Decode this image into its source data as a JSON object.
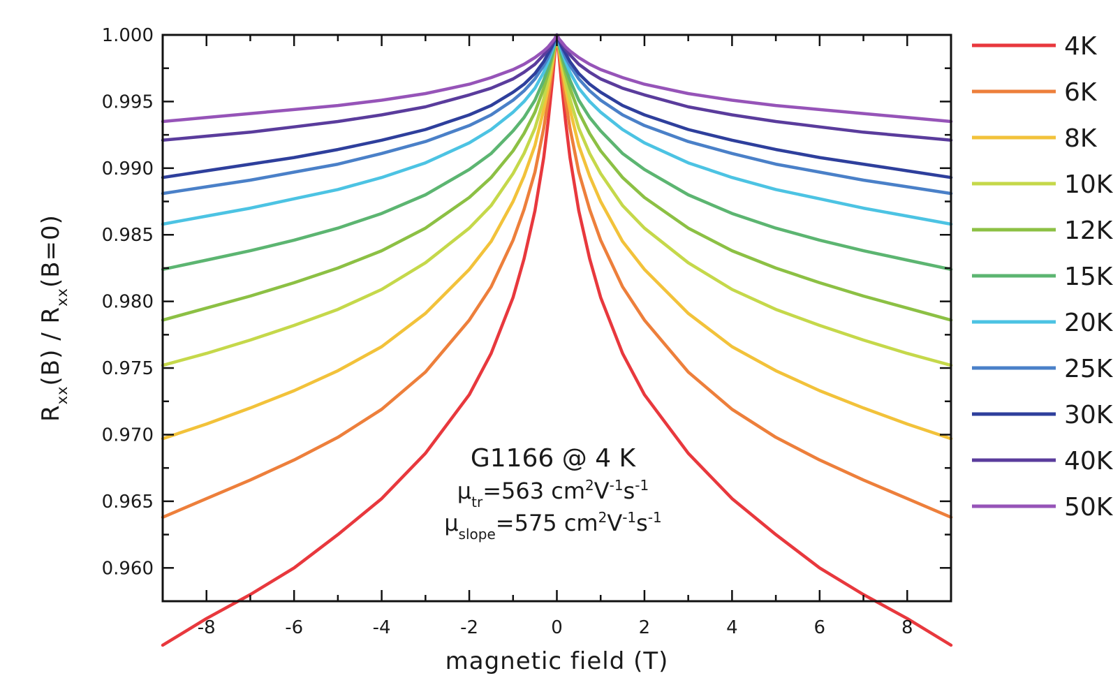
{
  "chart_data": {
    "type": "line",
    "xlabel": "magnetic field (T)",
    "ylabel": {
      "parts": [
        {
          "t": "R"
        },
        {
          "t": "xx",
          "sub": true
        },
        {
          "t": "(B) / R"
        },
        {
          "t": "xx",
          "sub": true
        },
        {
          "t": "(B=0)"
        }
      ]
    },
    "xlim": [
      -9,
      9
    ],
    "ylim": [
      0.9575,
      1.0
    ],
    "x_ticks": [
      -8,
      -6,
      -4,
      -2,
      0,
      2,
      4,
      6,
      8
    ],
    "x_tick_labels": [
      "-8",
      "-6",
      "-4",
      "-2",
      "0",
      "2",
      "4",
      "6",
      "8"
    ],
    "y_ticks": [
      0.96,
      0.965,
      0.97,
      0.975,
      0.98,
      0.985,
      0.99,
      0.995,
      1.0
    ],
    "y_tick_labels": [
      "0.960",
      "0.965",
      "0.970",
      "0.975",
      "0.980",
      "0.985",
      "0.990",
      "0.995",
      "1.000"
    ],
    "grid": false,
    "legend_position": "right, outside plot",
    "annotation": {
      "line1": "G1166 @ 4 K",
      "line2": [
        {
          "t": "μ"
        },
        {
          "t": "tr",
          "sub": true
        },
        {
          "t": "=563 cm"
        },
        {
          "t": "2",
          "sup": true
        },
        {
          "t": "V"
        },
        {
          "t": "-1",
          "sup": true
        },
        {
          "t": "s"
        },
        {
          "t": "-1",
          "sup": true
        }
      ],
      "line3": [
        {
          "t": "μ"
        },
        {
          "t": "slope",
          "sub": true
        },
        {
          "t": "=575 cm"
        },
        {
          "t": "2",
          "sup": true
        },
        {
          "t": "V"
        },
        {
          "t": "-1",
          "sup": true
        },
        {
          "t": "s"
        },
        {
          "t": "-1",
          "sup": true
        }
      ]
    },
    "x": [
      0,
      0.05,
      0.1,
      0.2,
      0.3,
      0.5,
      0.75,
      1.0,
      1.5,
      2.0,
      3.0,
      4.0,
      5.0,
      6.0,
      7.0,
      8.0,
      9.0
    ],
    "series": [
      {
        "name": "4K",
        "color": "#e8383d",
        "values": [
          1.0,
          0.9985,
          0.9966,
          0.9935,
          0.9908,
          0.9868,
          0.9832,
          0.9803,
          0.9761,
          0.973,
          0.9686,
          0.9652,
          0.9625,
          0.96,
          0.958,
          0.9562,
          0.9542
        ]
      },
      {
        "name": "6K",
        "color": "#ed7f3b",
        "values": [
          1.0,
          0.9988,
          0.9975,
          0.9951,
          0.993,
          0.9897,
          0.9869,
          0.9846,
          0.9811,
          0.9786,
          0.9747,
          0.9719,
          0.9698,
          0.9681,
          0.9666,
          0.9652,
          0.9638
        ]
      },
      {
        "name": "8K",
        "color": "#f2c23a",
        "values": [
          1.0,
          0.999,
          0.9979,
          0.996,
          0.9944,
          0.9917,
          0.9894,
          0.9875,
          0.9845,
          0.9824,
          0.9791,
          0.9766,
          0.9748,
          0.9733,
          0.972,
          0.9708,
          0.9697
        ]
      },
      {
        "name": "10K",
        "color": "#c5d84a",
        "values": [
          1.0,
          0.9991,
          0.9982,
          0.9966,
          0.9952,
          0.993,
          0.9911,
          0.9896,
          0.9872,
          0.9855,
          0.9829,
          0.9809,
          0.9794,
          0.9782,
          0.9771,
          0.9761,
          0.9752
        ]
      },
      {
        "name": "12K",
        "color": "#8cc044",
        "values": [
          1.0,
          0.9992,
          0.9984,
          0.9971,
          0.996,
          0.9942,
          0.9926,
          0.9913,
          0.9893,
          0.9878,
          0.9855,
          0.9838,
          0.9825,
          0.9814,
          0.9804,
          0.9795,
          0.9786
        ]
      },
      {
        "name": "15K",
        "color": "#5cb571",
        "values": [
          1.0,
          0.9993,
          0.9986,
          0.9975,
          0.9966,
          0.9951,
          0.9938,
          0.9928,
          0.9911,
          0.9899,
          0.988,
          0.9866,
          0.9855,
          0.9846,
          0.9838,
          0.9831,
          0.9824
        ]
      },
      {
        "name": "20K",
        "color": "#4cc3e3",
        "values": [
          1.0,
          0.9994,
          0.9989,
          0.998,
          0.9972,
          0.996,
          0.995,
          0.9942,
          0.9929,
          0.9919,
          0.9904,
          0.9893,
          0.9884,
          0.9877,
          0.987,
          0.9864,
          0.9858
        ]
      },
      {
        "name": "25K",
        "color": "#4a80c8",
        "values": [
          1.0,
          0.9995,
          0.9991,
          0.9983,
          0.9977,
          0.9967,
          0.9958,
          0.9951,
          0.994,
          0.9932,
          0.992,
          0.9911,
          0.9903,
          0.9897,
          0.9891,
          0.9886,
          0.9881
        ]
      },
      {
        "name": "30K",
        "color": "#2e3f9c",
        "values": [
          1.0,
          0.9996,
          0.9992,
          0.9986,
          0.998,
          0.9971,
          0.9963,
          0.9957,
          0.9947,
          0.994,
          0.9929,
          0.9921,
          0.9914,
          0.9908,
          0.9903,
          0.9898,
          0.9893
        ]
      },
      {
        "name": "40K",
        "color": "#5a3c9c",
        "values": [
          1.0,
          0.9997,
          0.9994,
          0.9989,
          0.9985,
          0.9978,
          0.9972,
          0.9967,
          0.996,
          0.9955,
          0.9946,
          0.994,
          0.9935,
          0.9931,
          0.9927,
          0.9924,
          0.9921
        ]
      },
      {
        "name": "50K",
        "color": "#9654b8",
        "values": [
          1.0,
          0.9997,
          0.9995,
          0.9991,
          0.9988,
          0.9983,
          0.9978,
          0.9974,
          0.9968,
          0.9963,
          0.9956,
          0.9951,
          0.9947,
          0.9944,
          0.9941,
          0.9938,
          0.9935
        ]
      }
    ]
  }
}
